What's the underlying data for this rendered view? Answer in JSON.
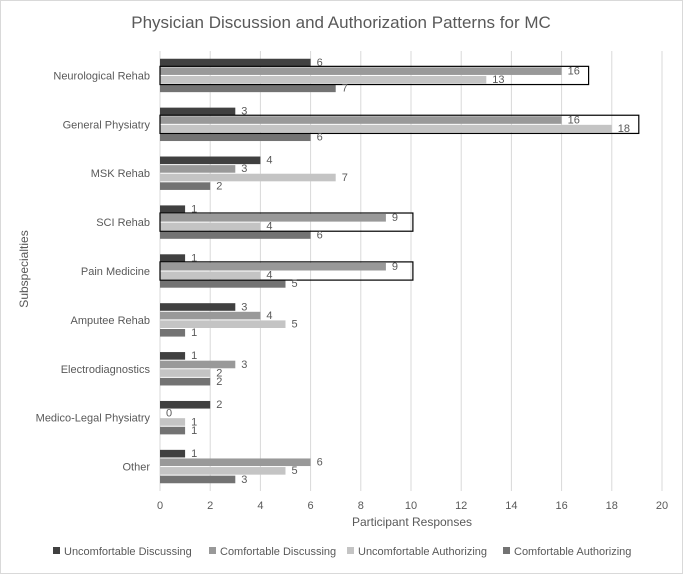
{
  "chart_data": {
    "type": "bar",
    "orientation": "horizontal",
    "title": "Physician Discussion and Authorization Patterns for MC",
    "xlabel": "Participant Responses",
    "ylabel": "Subspecialties",
    "xlim": [
      0,
      20
    ],
    "xticks": [
      0,
      2,
      4,
      6,
      8,
      10,
      12,
      14,
      16,
      18,
      20
    ],
    "grid": "vertical",
    "legend_position": "bottom",
    "categories": [
      "Neurological Rehab",
      "General Physiatry",
      "MSK Rehab",
      "SCI Rehab",
      "Pain Medicine",
      "Amputee Rehab",
      "Electrodiagnostics",
      "Medico-Legal Physiatry",
      "Other"
    ],
    "series": [
      {
        "name": "Uncomfortable Discussing",
        "color": "#404040",
        "values": [
          6,
          3,
          4,
          1,
          1,
          3,
          1,
          2,
          1
        ]
      },
      {
        "name": "Comfortable Discussing",
        "color": "#999999",
        "values": [
          16,
          16,
          3,
          9,
          9,
          4,
          3,
          0,
          6
        ]
      },
      {
        "name": "Uncomfortable Authorizing",
        "color": "#c4c4c4",
        "values": [
          13,
          18,
          7,
          4,
          4,
          5,
          2,
          1,
          5
        ]
      },
      {
        "name": "Comfortable Authorizing",
        "color": "#737373",
        "values": [
          7,
          6,
          2,
          6,
          5,
          1,
          2,
          1,
          3
        ]
      }
    ],
    "highlighted": [
      {
        "category": "Neurological Rehab",
        "series": [
          "Comfortable Discussing",
          "Uncomfortable Authorizing"
        ]
      },
      {
        "category": "General Physiatry",
        "series": [
          "Comfortable Discussing",
          "Uncomfortable Authorizing"
        ]
      },
      {
        "category": "SCI Rehab",
        "series": [
          "Comfortable Discussing",
          "Uncomfortable Authorizing"
        ]
      },
      {
        "category": "Pain Medicine",
        "series": [
          "Comfortable Discussing",
          "Uncomfortable Authorizing"
        ]
      }
    ]
  }
}
